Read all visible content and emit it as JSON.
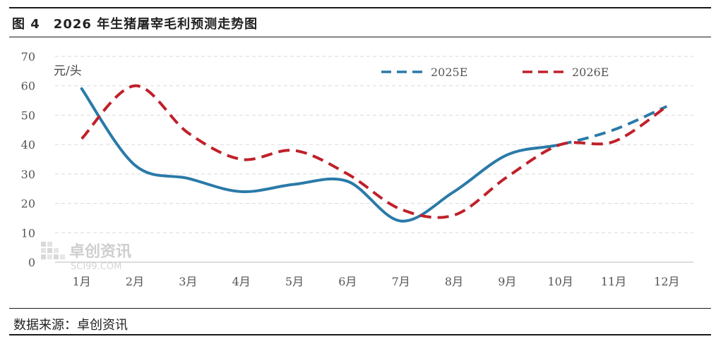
{
  "header": {
    "title": "图 4　2026 年生猪屠宰毛利预测走势图"
  },
  "footer": {
    "source": "数据来源：卓创资讯"
  },
  "watermark": {
    "brand": "卓创资讯",
    "site": "SCI99.COM"
  },
  "chart_data": {
    "type": "line",
    "title": "2026 年生猪屠宰毛利预测走势图",
    "ylabel": "元/头",
    "ylim": [
      0,
      70
    ],
    "yticks": [
      0,
      10,
      20,
      30,
      40,
      50,
      60,
      70
    ],
    "categories": [
      "1月",
      "2月",
      "3月",
      "4月",
      "5月",
      "6月",
      "7月",
      "8月",
      "9月",
      "10月",
      "11月",
      "12月"
    ],
    "grid": true,
    "legend_position": "top-right",
    "series": [
      {
        "name": "2025E",
        "color": "#2a7aa8",
        "style": "solid-then-dashed",
        "values": [
          59,
          33,
          28.5,
          24,
          26.5,
          27.5,
          14,
          24,
          36.5,
          40,
          45,
          53
        ]
      },
      {
        "name": "2026E",
        "color": "#c0202a",
        "style": "dashed",
        "values": [
          42,
          60,
          44,
          35,
          38,
          30,
          18,
          16,
          29,
          40,
          41,
          53
        ]
      }
    ]
  }
}
